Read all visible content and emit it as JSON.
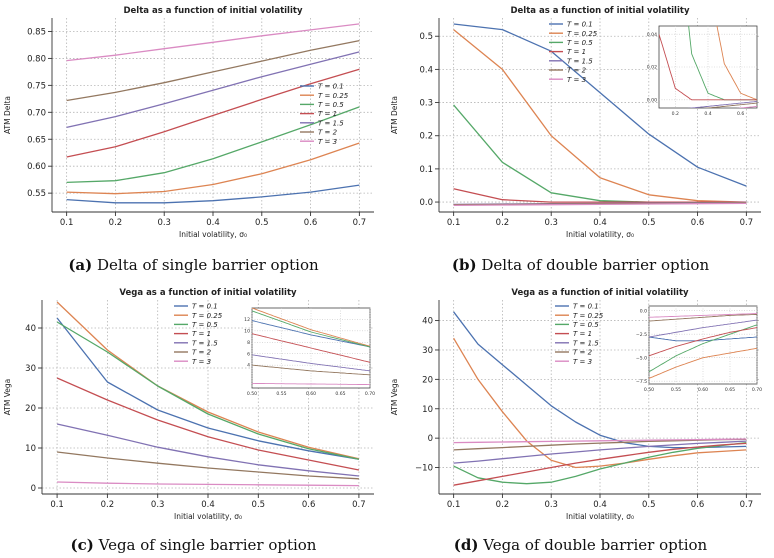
{
  "figures": [
    {
      "panel_label": "(a)",
      "caption_text": "Delta of single barrier option",
      "chart": {
        "type": "line",
        "title": "Delta as a function of initial volatility",
        "xlabel": "Initial volatility, σ₀",
        "ylabel": "ATM Delta",
        "xlim": [
          0.07,
          0.73
        ],
        "ylim": [
          0.515,
          0.875
        ],
        "xticks": [
          "0.1",
          "0.2",
          "0.3",
          "0.4",
          "0.5",
          "0.6",
          "0.7"
        ],
        "xtick_values": [
          0.1,
          0.2,
          0.3,
          0.4,
          0.5,
          0.6,
          0.7
        ],
        "yticks": [
          "0.55",
          "0.60",
          "0.65",
          "0.70",
          "0.75",
          "0.80",
          "0.85"
        ],
        "ytick_values": [
          0.55,
          0.6,
          0.65,
          0.7,
          0.75,
          0.8,
          0.85
        ],
        "legend_loc": "center-right",
        "x": [
          0.1,
          0.2,
          0.3,
          0.4,
          0.5,
          0.6,
          0.7
        ],
        "series": [
          {
            "name": "T = 0.1",
            "color": "#4c72b0",
            "values": [
              0.538,
              0.532,
              0.532,
              0.536,
              0.543,
              0.552,
              0.565
            ]
          },
          {
            "name": "T = 0.25",
            "color": "#dd8452",
            "values": [
              0.552,
              0.549,
              0.553,
              0.566,
              0.586,
              0.612,
              0.643
            ]
          },
          {
            "name": "T = 0.5",
            "color": "#55a868",
            "values": [
              0.57,
              0.573,
              0.588,
              0.614,
              0.645,
              0.677,
              0.71
            ]
          },
          {
            "name": "T = 1",
            "color": "#c44e52",
            "values": [
              0.617,
              0.636,
              0.664,
              0.694,
              0.724,
              0.753,
              0.78
            ]
          },
          {
            "name": "T = 1.5",
            "color": "#8172b3",
            "values": [
              0.672,
              0.692,
              0.716,
              0.741,
              0.766,
              0.789,
              0.812
            ]
          },
          {
            "name": "T = 2",
            "color": "#937860",
            "values": [
              0.722,
              0.737,
              0.755,
              0.775,
              0.795,
              0.815,
              0.833
            ]
          },
          {
            "name": "T = 3",
            "color": "#da8bc3",
            "values": [
              0.796,
              0.806,
              0.818,
              0.83,
              0.842,
              0.853,
              0.864
            ]
          }
        ]
      }
    },
    {
      "panel_label": "(b)",
      "caption_text": "Delta of double barrier option",
      "chart": {
        "type": "line",
        "title": "Delta as a function of initial volatility",
        "xlabel": "Initial volatility, σ₀",
        "ylabel": "ATM Delta",
        "xlim": [
          0.07,
          0.73
        ],
        "ylim": [
          -0.03,
          0.555
        ],
        "xticks": [
          "0.1",
          "0.2",
          "0.3",
          "0.4",
          "0.5",
          "0.6",
          "0.7"
        ],
        "xtick_values": [
          0.1,
          0.2,
          0.3,
          0.4,
          0.5,
          0.6,
          0.7
        ],
        "yticks": [
          "0.0",
          "0.1",
          "0.2",
          "0.3",
          "0.4",
          "0.5"
        ],
        "ytick_values": [
          0.0,
          0.1,
          0.2,
          0.3,
          0.4,
          0.5
        ],
        "legend_loc": "top-center",
        "x": [
          0.1,
          0.2,
          0.3,
          0.4,
          0.5,
          0.6,
          0.7
        ],
        "series": [
          {
            "name": "T = 0.1",
            "color": "#4c72b0",
            "values": [
              0.537,
              0.52,
              0.455,
              0.33,
              0.205,
              0.105,
              0.048
            ]
          },
          {
            "name": "T = 0.25",
            "color": "#dd8452",
            "values": [
              0.52,
              0.4,
              0.2,
              0.073,
              0.022,
              0.004,
              0.0
            ]
          },
          {
            "name": "T = 0.5",
            "color": "#55a868",
            "values": [
              0.293,
              0.12,
              0.028,
              0.004,
              0.0,
              0.0,
              0.0
            ]
          },
          {
            "name": "T = 1",
            "color": "#c44e52",
            "values": [
              0.04,
              0.007,
              0.0,
              0.0,
              0.0,
              0.0,
              0.0
            ]
          },
          {
            "name": "T = 1.5",
            "color": "#8172b3",
            "values": [
              -0.007,
              -0.006,
              -0.005,
              -0.004,
              -0.003,
              -0.002,
              -0.001
            ]
          },
          {
            "name": "T = 2",
            "color": "#937860",
            "values": [
              -0.008,
              -0.007,
              -0.006,
              -0.005,
              -0.004,
              -0.003,
              -0.002
            ]
          },
          {
            "name": "T = 3",
            "color": "#da8bc3",
            "values": [
              -0.01,
              -0.009,
              -0.008,
              -0.007,
              -0.006,
              -0.005,
              -0.004
            ]
          }
        ],
        "inset": {
          "xlim": [
            0.1,
            0.7
          ],
          "ylim": [
            -0.005,
            0.045
          ],
          "xticks": [
            "0.2",
            "0.4",
            "0.6"
          ],
          "xtick_values": [
            0.2,
            0.4,
            0.6
          ],
          "yticks": [
            "0.00",
            "0.02",
            "0.04"
          ],
          "ytick_values": [
            0.0,
            0.02,
            0.04
          ]
        }
      }
    },
    {
      "panel_label": "(c)",
      "caption_text": "Vega of single barrier option",
      "chart": {
        "type": "line",
        "title": "Vega as a function of initial volatility",
        "xlabel": "Initial volatility, σ₀",
        "ylabel": "ATM Vega",
        "xlim": [
          0.07,
          0.73
        ],
        "ylim": [
          -1.5,
          47
        ],
        "xticks": [
          "0.1",
          "0.2",
          "0.3",
          "0.4",
          "0.5",
          "0.6",
          "0.7"
        ],
        "xtick_values": [
          0.1,
          0.2,
          0.3,
          0.4,
          0.5,
          0.6,
          0.7
        ],
        "yticks": [
          "0",
          "10",
          "20",
          "30",
          "40"
        ],
        "ytick_values": [
          0,
          10,
          20,
          30,
          40
        ],
        "legend_loc": "top-center",
        "x": [
          0.1,
          0.2,
          0.3,
          0.4,
          0.5,
          0.6,
          0.7
        ],
        "series": [
          {
            "name": "T = 0.1",
            "color": "#4c72b0",
            "values": [
              42.5,
              26.5,
              19.5,
              15.0,
              11.8,
              9.3,
              7.2
            ]
          },
          {
            "name": "T = 0.25",
            "color": "#dd8452",
            "values": [
              46.5,
              34.5,
              25.5,
              19.0,
              14.0,
              10.2,
              7.3
            ]
          },
          {
            "name": "T = 0.5",
            "color": "#55a868",
            "values": [
              41.5,
              34.0,
              25.5,
              18.5,
              13.5,
              9.8,
              7.2
            ]
          },
          {
            "name": "T = 1",
            "color": "#c44e52",
            "values": [
              27.5,
              22.0,
              17.0,
              12.8,
              9.5,
              7.0,
              4.5
            ]
          },
          {
            "name": "T = 1.5",
            "color": "#8172b3",
            "values": [
              16.0,
              13.2,
              10.2,
              7.8,
              5.8,
              4.3,
              3.0
            ]
          },
          {
            "name": "T = 2",
            "color": "#937860",
            "values": [
              9.0,
              7.5,
              6.2,
              5.0,
              4.0,
              3.0,
              2.3
            ]
          },
          {
            "name": "T = 3",
            "color": "#da8bc3",
            "values": [
              1.5,
              1.2,
              1.0,
              0.9,
              0.8,
              0.7,
              0.6
            ]
          }
        ],
        "inset": {
          "xlim": [
            0.5,
            0.7
          ],
          "ylim": [
            0,
            14
          ],
          "xticks": [
            "0.50",
            "0.55",
            "0.60",
            "0.65",
            "0.70"
          ],
          "xtick_values": [
            0.5,
            0.55,
            0.6,
            0.65,
            0.7
          ],
          "yticks": [
            "4",
            "6",
            "8",
            "10",
            "12"
          ],
          "ytick_values": [
            4,
            6,
            8,
            10,
            12
          ]
        }
      }
    },
    {
      "panel_label": "(d)",
      "caption_text": "Vega of double barrier option",
      "chart": {
        "type": "line",
        "title": "Vega as a function of initial volatility",
        "xlabel": "Initial volatility, σ₀",
        "ylabel": "ATM Vega",
        "xlim": [
          0.07,
          0.73
        ],
        "ylim": [
          -19,
          47
        ],
        "xticks": [
          "0.1",
          "0.2",
          "0.3",
          "0.4",
          "0.5",
          "0.6",
          "0.7"
        ],
        "xtick_values": [
          0.1,
          0.2,
          0.3,
          0.4,
          0.5,
          0.6,
          0.7
        ],
        "yticks": [
          "−10",
          "0",
          "10",
          "20",
          "30",
          "40"
        ],
        "ytick_values": [
          -10,
          0,
          10,
          20,
          30,
          40
        ],
        "legend_loc": "top-center",
        "x": [
          0.1,
          0.15,
          0.2,
          0.25,
          0.3,
          0.35,
          0.4,
          0.45,
          0.5,
          0.55,
          0.6,
          0.65,
          0.7
        ],
        "series": [
          {
            "name": "T = 0.1",
            "color": "#4c72b0",
            "values": [
              43.0,
              32.0,
              25.0,
              18.0,
              11.0,
              5.5,
              1.0,
              -1.5,
              -2.8,
              -3.2,
              -3.2,
              -3.0,
              -2.8
            ]
          },
          {
            "name": "T = 0.25",
            "color": "#dd8452",
            "values": [
              34.0,
              20.0,
              9.0,
              -1.0,
              -7.5,
              -10.0,
              -9.5,
              -8.5,
              -7.2,
              -6.0,
              -5.0,
              -4.5,
              -4.0
            ]
          },
          {
            "name": "T = 0.5",
            "color": "#55a868",
            "values": [
              -9.5,
              -13.5,
              -15.0,
              -15.5,
              -15.0,
              -13.0,
              -10.5,
              -8.5,
              -6.5,
              -4.8,
              -3.5,
              -2.5,
              -1.5
            ]
          },
          {
            "name": "T = 1",
            "color": "#c44e52",
            "values": [
              -16.0,
              -14.5,
              -13.0,
              -11.5,
              -10.0,
              -8.5,
              -7.2,
              -6.0,
              -4.8,
              -3.8,
              -3.0,
              -2.3,
              -1.8
            ]
          },
          {
            "name": "T = 1.5",
            "color": "#8172b3",
            "values": [
              -8.5,
              -7.8,
              -7.0,
              -6.2,
              -5.4,
              -4.7,
              -4.0,
              -3.4,
              -2.8,
              -2.3,
              -1.8,
              -1.4,
              -1.0
            ]
          },
          {
            "name": "T = 2",
            "color": "#937860",
            "values": [
              -4.0,
              -3.6,
              -3.2,
              -2.8,
              -2.4,
              -2.0,
              -1.7,
              -1.4,
              -1.1,
              -0.9,
              -0.7,
              -0.5,
              -0.4
            ]
          },
          {
            "name": "T = 3",
            "color": "#da8bc3",
            "values": [
              -1.5,
              -1.4,
              -1.3,
              -1.2,
              -1.1,
              -1.0,
              -0.9,
              -0.8,
              -0.7,
              -0.6,
              -0.5,
              -0.4,
              -0.3
            ]
          }
        ],
        "inset": {
          "xlim": [
            0.5,
            0.7
          ],
          "ylim": [
            -7.8,
            0.5
          ],
          "xticks": [
            "0.50",
            "0.55",
            "0.60",
            "0.65",
            "0.70"
          ],
          "xtick_values": [
            0.5,
            0.55,
            0.6,
            0.65,
            0.7
          ],
          "yticks": [
            "−7.5",
            "−5.0",
            "−2.5",
            "0.0"
          ],
          "ytick_values": [
            -7.5,
            -5.0,
            -2.5,
            0.0
          ]
        }
      }
    }
  ]
}
